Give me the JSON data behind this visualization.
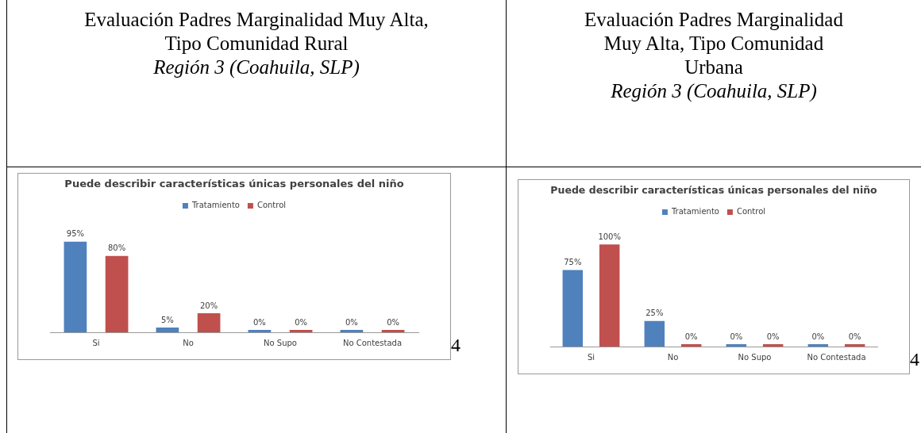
{
  "chart_data": [
    {
      "type": "bar",
      "title": "Puede describir características únicas personales del niño",
      "categories": [
        "Si",
        "No",
        "No Supo",
        "No Contestada"
      ],
      "series": [
        {
          "name": "Tratamiento",
          "color": "#4f81bd",
          "values": [
            95,
            5,
            0,
            0
          ],
          "value_labels": [
            "95%",
            "5%",
            "0%",
            "0%"
          ]
        },
        {
          "name": "Control",
          "color": "#c0504d",
          "values": [
            80,
            20,
            0,
            0
          ],
          "value_labels": [
            "80%",
            "20%",
            "0%",
            "0%"
          ]
        }
      ],
      "legend": "top",
      "grid": false,
      "annotations": [
        "Evaluación Padres Marginalidad Muy Alta, Tipo Comunidad Rural",
        "Región 3 (Coahuila, SLP)",
        "4"
      ]
    },
    {
      "type": "bar",
      "title": "Puede describir características únicas personales del niño",
      "categories": [
        "Si",
        "No",
        "No Supo",
        "No Contestada"
      ],
      "series": [
        {
          "name": "Tratamiento",
          "color": "#4f81bd",
          "values": [
            75,
            25,
            0,
            0
          ],
          "value_labels": [
            "75%",
            "25%",
            "0%",
            "0%"
          ]
        },
        {
          "name": "Control",
          "color": "#c0504d",
          "values": [
            100,
            0,
            0,
            0
          ],
          "value_labels": [
            "100%",
            "0%",
            "0%",
            "0%"
          ]
        }
      ],
      "legend": "top",
      "grid": false,
      "annotations": [
        "Evaluación Padres Marginalidad Muy Alta, Tipo Comunidad Urbana",
        "Región 3 (Coahuila, SLP)",
        "4"
      ]
    }
  ]
}
